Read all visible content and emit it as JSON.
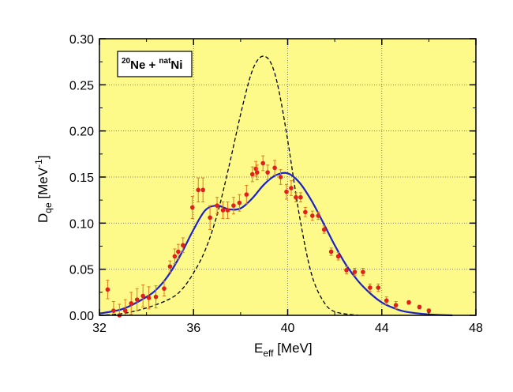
{
  "chart_data": {
    "type": "scatter",
    "legend": "top-left",
    "grid": true,
    "xlim": [
      32,
      48
    ],
    "ylim": [
      0,
      0.3
    ],
    "x_ticks": [
      "32",
      "36",
      "40",
      "44",
      "48"
    ],
    "y_ticks": [
      "0.00",
      "0.05",
      "0.10",
      "0.15",
      "0.20",
      "0.25",
      "0.30"
    ],
    "xlabel": {
      "main": "E",
      "sub": "eff",
      "rest": " [MeV]"
    },
    "ylabel": {
      "main": "D",
      "sub": "qe",
      "rest": " [MeV",
      "sup": "-1",
      "end": "]"
    },
    "annotation": {
      "sup1": "20",
      "t1": "Ne + ",
      "sup2": "nat",
      "t2": "Ni"
    },
    "colors": {
      "plot_bg": "#fdfa8a",
      "points": "#e0201a",
      "errbars": "#e07a1a",
      "solid": "#1a22c8",
      "dashed": "#000000",
      "grid": "#808080"
    },
    "series": [
      {
        "style": "points-with-errors",
        "x": [
          32.35,
          32.6,
          32.85,
          33.1,
          33.35,
          33.6,
          33.85,
          34.1,
          34.4,
          34.75,
          35.0,
          35.2,
          35.35,
          35.55,
          35.95,
          36.2,
          36.4,
          36.7,
          37.0,
          37.25,
          37.45,
          37.7,
          37.95,
          38.25,
          38.5,
          38.65,
          38.7,
          38.95,
          39.15,
          39.45,
          39.7,
          39.95,
          40.15,
          40.35,
          40.55,
          40.75,
          41.05,
          41.3,
          41.55,
          41.85,
          42.15,
          42.5,
          42.85,
          43.2,
          43.5,
          43.85,
          44.2,
          44.6,
          45.15,
          45.6,
          46.0
        ],
        "y": [
          0.028,
          0.005,
          0.0,
          0.005,
          0.013,
          0.017,
          0.021,
          0.019,
          0.02,
          0.029,
          0.053,
          0.064,
          0.069,
          0.076,
          0.117,
          0.136,
          0.136,
          0.106,
          0.119,
          0.114,
          0.114,
          0.119,
          0.122,
          0.131,
          0.153,
          0.159,
          0.155,
          0.165,
          0.155,
          0.16,
          0.15,
          0.134,
          0.138,
          0.128,
          0.128,
          0.112,
          0.108,
          0.108,
          0.093,
          0.069,
          0.064,
          0.049,
          0.047,
          0.047,
          0.03,
          0.03,
          0.016,
          0.011,
          0.014,
          0.009,
          0.005
        ],
        "err": [
          0.01,
          0.01,
          0.012,
          0.012,
          0.012,
          0.012,
          0.012,
          0.012,
          0.012,
          0.008,
          0.006,
          0.008,
          0.008,
          0.008,
          0.012,
          0.013,
          0.013,
          0.013,
          0.009,
          0.009,
          0.009,
          0.009,
          0.009,
          0.01,
          0.008,
          0.008,
          0.008,
          0.008,
          0.008,
          0.008,
          0.008,
          0.008,
          0.008,
          0.005,
          0.005,
          0.005,
          0.005,
          0.004,
          0.004,
          0.004,
          0.004,
          0.004,
          0.004,
          0.004,
          0.004,
          0.004,
          0.004,
          0.004,
          0.002,
          0.002,
          0.002
        ]
      },
      {
        "style": "solid-line",
        "x": [
          32.0,
          33.0,
          34.0,
          34.5,
          35.0,
          35.5,
          36.0,
          36.5,
          37.0,
          37.5,
          38.0,
          38.5,
          39.0,
          39.5,
          40.0,
          40.5,
          41.0,
          41.5,
          42.0,
          42.5,
          43.0,
          43.5,
          44.0,
          44.5,
          45.0,
          46.0,
          47.0
        ],
        "y": [
          0.002,
          0.007,
          0.02,
          0.03,
          0.046,
          0.068,
          0.093,
          0.114,
          0.119,
          0.115,
          0.116,
          0.127,
          0.142,
          0.152,
          0.154,
          0.144,
          0.125,
          0.101,
          0.076,
          0.054,
          0.037,
          0.024,
          0.014,
          0.008,
          0.004,
          0.001,
          0.0
        ]
      },
      {
        "style": "dashed-line",
        "x": [
          32.0,
          33.0,
          34.0,
          35.0,
          35.5,
          36.0,
          36.5,
          37.0,
          37.5,
          38.0,
          38.4,
          38.7,
          39.0,
          39.3,
          39.6,
          40.0,
          40.5,
          41.0,
          41.5,
          42.0,
          43.0
        ],
        "y": [
          0.0,
          0.002,
          0.008,
          0.018,
          0.028,
          0.046,
          0.071,
          0.109,
          0.161,
          0.218,
          0.258,
          0.276,
          0.281,
          0.273,
          0.247,
          0.19,
          0.108,
          0.046,
          0.016,
          0.004,
          0.0
        ]
      }
    ]
  }
}
